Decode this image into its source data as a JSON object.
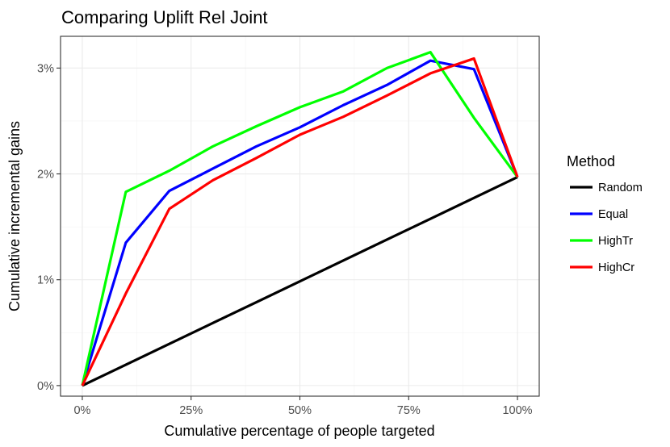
{
  "chart_data": {
    "type": "line",
    "title": "Comparing Uplift Rel Joint",
    "xlabel": "Cumulative percentage of people targeted",
    "ylabel": "Cumulative incremental gains",
    "xlim": [
      -0.05,
      1.05
    ],
    "ylim": [
      -0.1,
      3.3
    ],
    "x_ticks": [
      0,
      0.25,
      0.5,
      0.75,
      1.0
    ],
    "x_tick_labels": [
      "0%",
      "25%",
      "50%",
      "75%",
      "100%"
    ],
    "y_ticks": [
      0,
      1,
      2,
      3
    ],
    "y_tick_labels": [
      "0%",
      "1%",
      "2%",
      "3%"
    ],
    "grid": true,
    "legend": {
      "title": "Method",
      "position": "right"
    },
    "x": [
      0,
      0.1,
      0.2,
      0.3,
      0.4,
      0.5,
      0.6,
      0.7,
      0.8,
      0.9,
      1.0
    ],
    "series": [
      {
        "name": "Random",
        "color": "#000000",
        "values": [
          0,
          0.197,
          0.394,
          0.591,
          0.788,
          0.985,
          1.182,
          1.379,
          1.576,
          1.773,
          1.97
        ]
      },
      {
        "name": "Equal",
        "color": "#0000ff",
        "values": [
          0,
          1.35,
          1.84,
          2.05,
          2.26,
          2.44,
          2.65,
          2.84,
          3.07,
          2.99,
          1.97
        ]
      },
      {
        "name": "HighTr",
        "color": "#00ff00",
        "values": [
          0,
          1.83,
          2.03,
          2.26,
          2.45,
          2.63,
          2.78,
          3.0,
          3.15,
          2.53,
          1.97
        ]
      },
      {
        "name": "HighCr",
        "color": "#ff0000",
        "values": [
          0,
          0.87,
          1.67,
          1.94,
          2.15,
          2.37,
          2.54,
          2.74,
          2.95,
          3.09,
          1.97
        ]
      }
    ]
  }
}
